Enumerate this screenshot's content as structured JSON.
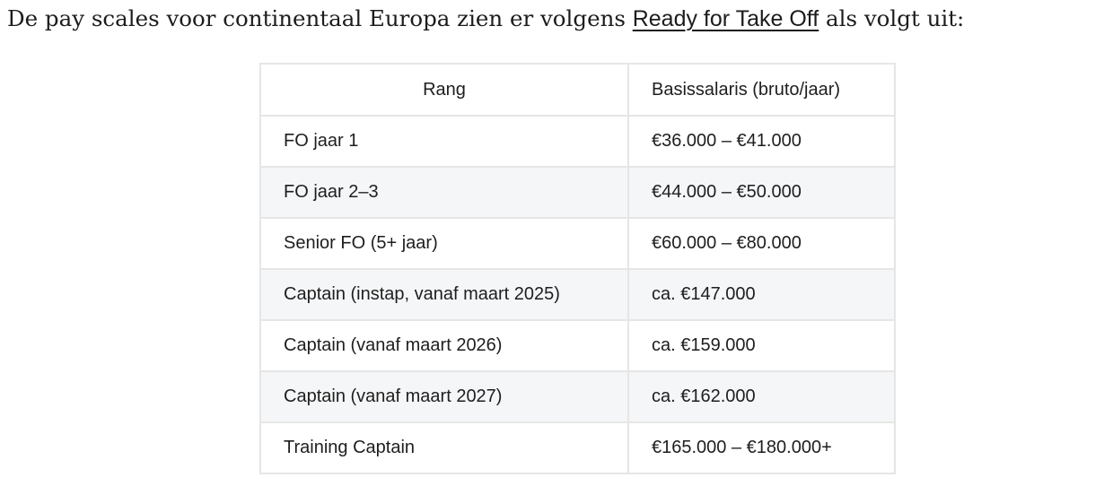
{
  "intro": {
    "before": "De pay scales voor continentaal Europa zien er volgens ",
    "link": "Ready for Take Off",
    "after": " als volgt uit:"
  },
  "table": {
    "headers": [
      "Rang",
      "Basissalaris (bruto/jaar)"
    ],
    "rows": [
      [
        "FO jaar 1",
        "€36.000 – €41.000"
      ],
      [
        "FO jaar 2–3",
        "€44.000 – €50.000"
      ],
      [
        "Senior FO (5+ jaar)",
        "€60.000 – €80.000"
      ],
      [
        "Captain (instap, vanaf maart 2025)",
        "ca. €147.000"
      ],
      [
        "Captain (vanaf maart 2026)",
        "ca. €159.000"
      ],
      [
        "Captain (vanaf maart 2027)",
        "ca. €162.000"
      ],
      [
        "Training Captain",
        "€165.000 – €180.000+"
      ]
    ]
  }
}
